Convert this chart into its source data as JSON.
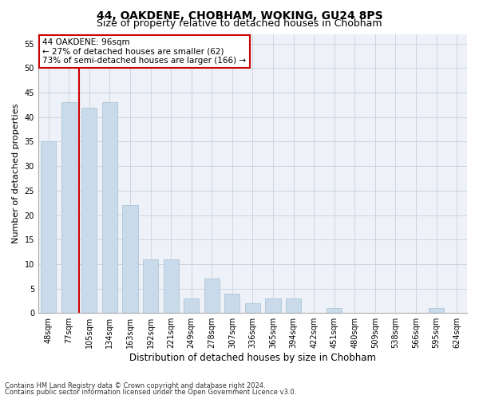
{
  "title1": "44, OAKDENE, CHOBHAM, WOKING, GU24 8PS",
  "title2": "Size of property relative to detached houses in Chobham",
  "xlabel": "Distribution of detached houses by size in Chobham",
  "ylabel": "Number of detached properties",
  "categories": [
    "48sqm",
    "77sqm",
    "105sqm",
    "134sqm",
    "163sqm",
    "192sqm",
    "221sqm",
    "249sqm",
    "278sqm",
    "307sqm",
    "336sqm",
    "365sqm",
    "394sqm",
    "422sqm",
    "451sqm",
    "480sqm",
    "509sqm",
    "538sqm",
    "566sqm",
    "595sqm",
    "624sqm"
  ],
  "values": [
    35,
    43,
    42,
    43,
    22,
    11,
    11,
    3,
    7,
    4,
    2,
    3,
    3,
    0,
    1,
    0,
    0,
    0,
    0,
    1,
    0
  ],
  "bar_color": "#c9daea",
  "bar_edge_color": "#aec6d8",
  "vline_x_index": 2,
  "vline_color": "#cc0000",
  "annotation_text": "44 OAKDENE: 96sqm\n← 27% of detached houses are smaller (62)\n73% of semi-detached houses are larger (166) →",
  "annotation_box_color": "#ffffff",
  "annotation_box_edge": "#cc0000",
  "ylim": [
    0,
    57
  ],
  "yticks": [
    0,
    5,
    10,
    15,
    20,
    25,
    30,
    35,
    40,
    45,
    50,
    55
  ],
  "footer1": "Contains HM Land Registry data © Crown copyright and database right 2024.",
  "footer2": "Contains public sector information licensed under the Open Government Licence v3.0.",
  "grid_color": "#ccd5e0",
  "bg_color": "#eef2f8",
  "title1_fontsize": 10,
  "title2_fontsize": 9,
  "xlabel_fontsize": 8.5,
  "ylabel_fontsize": 8,
  "tick_fontsize": 7,
  "bar_width": 0.75,
  "footer_fontsize": 6,
  "annot_fontsize": 7.5
}
